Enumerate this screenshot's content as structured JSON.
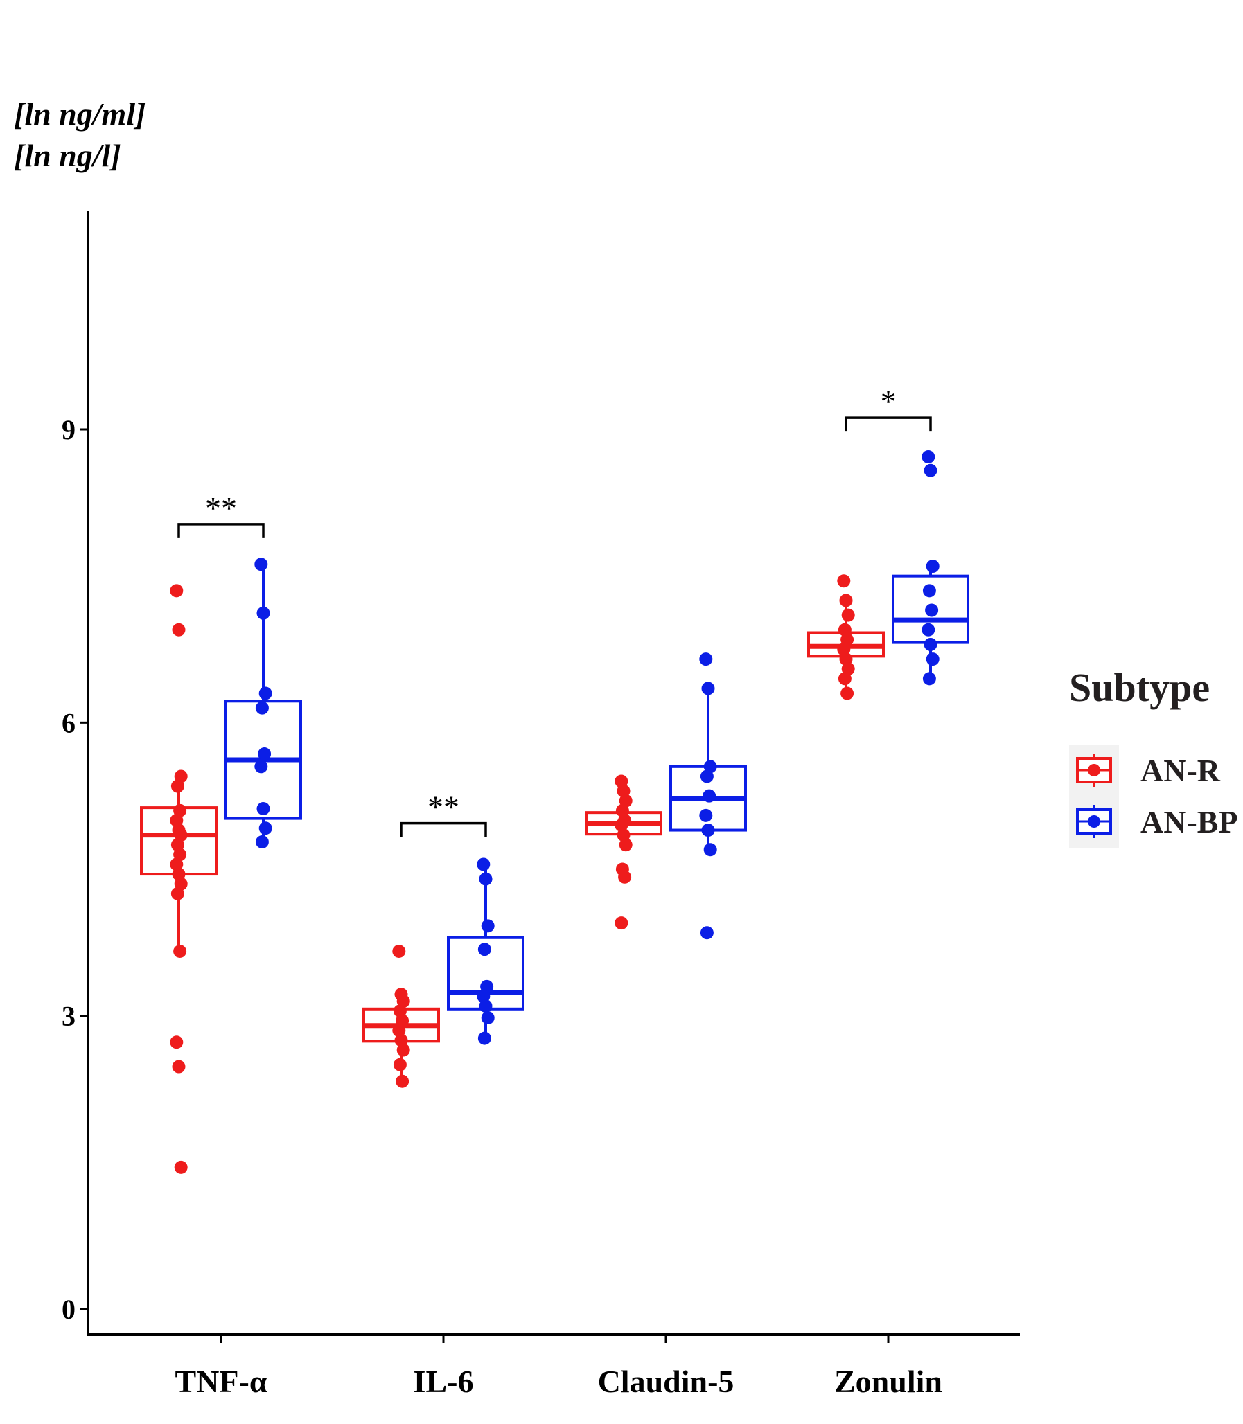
{
  "chart_data": {
    "type": "box",
    "y_axis_labels": [
      "[ln ng/ml]",
      "[ln ng/l]"
    ],
    "ylim": [
      -0.25,
      11.2
    ],
    "yticks": [
      0,
      3,
      6,
      9
    ],
    "ytick_labels": [
      "0",
      "3",
      "6",
      "9"
    ],
    "categories": [
      "TNF-α",
      "IL-6",
      "Claudin-5",
      "Zonulin"
    ],
    "legend": {
      "title": "Subtype",
      "position": "right",
      "entries": [
        {
          "label": "AN-R",
          "color": "#ee1c1c"
        },
        {
          "label": "AN-BP",
          "color": "#0b1ee6"
        }
      ]
    },
    "series": [
      {
        "name": "AN-R",
        "color": "#ee1c1c",
        "boxes": [
          {
            "category": "TNF-α",
            "q1": 4.45,
            "median": 4.85,
            "q3": 5.13,
            "whisker_low": 3.66,
            "whisker_high": 5.45,
            "points": [
              7.35,
              6.95,
              5.45,
              5.35,
              5.1,
              5.0,
              4.9,
              4.85,
              4.75,
              4.65,
              4.55,
              4.45,
              4.35,
              4.25,
              3.66,
              2.73,
              2.48,
              1.45
            ]
          },
          {
            "category": "IL-6",
            "q1": 2.74,
            "median": 2.9,
            "q3": 3.07,
            "whisker_low": 2.33,
            "whisker_high": 3.22,
            "points": [
              3.66,
              3.22,
              3.15,
              3.05,
              2.95,
              2.85,
              2.75,
              2.65,
              2.5,
              2.33
            ]
          },
          {
            "category": "Claudin-5",
            "q1": 4.86,
            "median": 4.97,
            "q3": 5.08,
            "whisker_low": 4.75,
            "whisker_high": 5.4,
            "points": [
              5.4,
              5.3,
              5.2,
              5.1,
              5.0,
              4.95,
              4.85,
              4.75,
              4.5,
              4.42,
              3.95
            ]
          },
          {
            "category": "Zonulin",
            "q1": 6.68,
            "median": 6.78,
            "q3": 6.92,
            "whisker_low": 6.3,
            "whisker_high": 7.25,
            "points": [
              7.45,
              7.25,
              7.1,
              6.95,
              6.85,
              6.75,
              6.65,
              6.55,
              6.45,
              6.3
            ]
          }
        ]
      },
      {
        "name": "AN-BP",
        "color": "#0b1ee6",
        "boxes": [
          {
            "category": "TNF-α",
            "q1": 5.02,
            "median": 5.62,
            "q3": 6.22,
            "whisker_low": 4.78,
            "whisker_high": 7.62,
            "points": [
              7.62,
              7.12,
              6.3,
              6.15,
              5.68,
              5.55,
              5.12,
              4.92,
              4.78
            ]
          },
          {
            "category": "IL-6",
            "q1": 3.07,
            "median": 3.24,
            "q3": 3.8,
            "whisker_low": 2.77,
            "whisker_high": 4.55,
            "points": [
              4.55,
              4.4,
              3.92,
              3.68,
              3.3,
              3.2,
              3.1,
              2.98,
              2.77
            ]
          },
          {
            "category": "Claudin-5",
            "q1": 4.9,
            "median": 5.22,
            "q3": 5.55,
            "whisker_low": 4.7,
            "whisker_high": 6.35,
            "points": [
              6.65,
              6.35,
              5.55,
              5.45,
              5.25,
              5.05,
              4.9,
              4.7,
              3.85
            ]
          },
          {
            "category": "Zonulin",
            "q1": 6.82,
            "median": 7.05,
            "q3": 7.5,
            "whisker_low": 6.45,
            "whisker_high": 7.6,
            "points": [
              8.72,
              8.58,
              7.6,
              7.35,
              7.15,
              6.95,
              6.8,
              6.65,
              6.45
            ]
          }
        ]
      }
    ],
    "annotations": [
      {
        "category": "TNF-α",
        "text": "**",
        "y": 8.03
      },
      {
        "category": "IL-6",
        "text": "**",
        "y": 4.97
      },
      {
        "category": "Zonulin",
        "text": "*",
        "y": 9.12
      }
    ]
  }
}
